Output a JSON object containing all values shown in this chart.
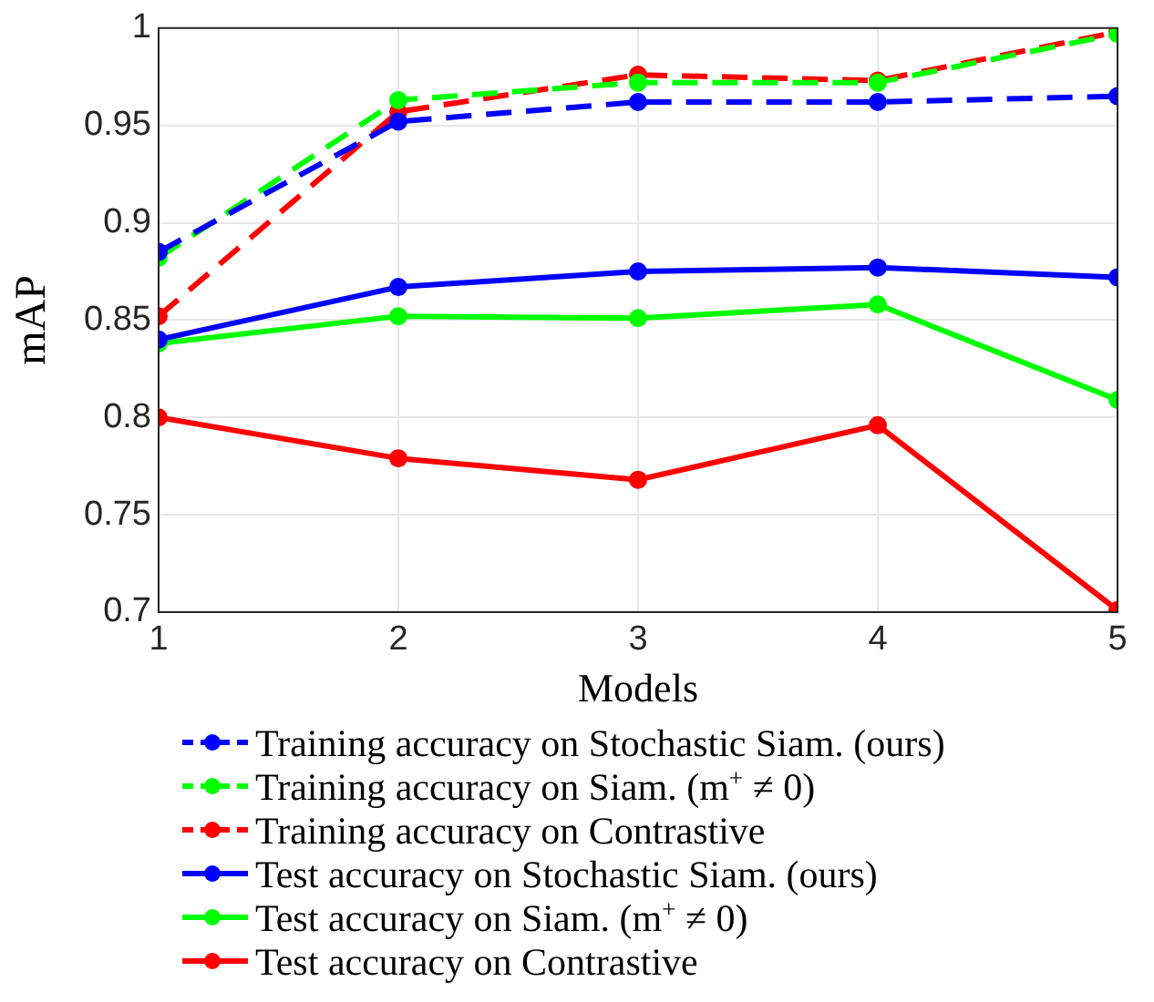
{
  "chart_data": {
    "type": "line",
    "xlabel": "Models",
    "ylabel": "mAP",
    "x": [
      1,
      2,
      3,
      4,
      5
    ],
    "xlim": [
      1,
      5
    ],
    "xticks": [
      1,
      2,
      3,
      4,
      5
    ],
    "ylim": [
      0.7,
      1
    ],
    "yticks": [
      0.7,
      0.75,
      0.8,
      0.85,
      0.9,
      0.95,
      1
    ],
    "grid": true,
    "legend": "bottom",
    "marker": "circle",
    "series": [
      {
        "name": "Training accuracy on Stochastic Siam. (ours)",
        "color": "#0000ff",
        "line_style": "dashed",
        "values": [
          0.885,
          0.952,
          0.962,
          0.962,
          0.965
        ]
      },
      {
        "name": "Training accuracy on Siam. (m$^{+}$ ≠ 0)",
        "color": "#00ff00",
        "line_style": "dashed",
        "values": [
          0.882,
          0.963,
          0.972,
          0.972,
          0.997
        ]
      },
      {
        "name": "Training accuracy on Contrastive",
        "color": "#ff0000",
        "line_style": "dashed",
        "values": [
          0.852,
          0.957,
          0.976,
          0.973,
          0.998
        ]
      },
      {
        "name": "Test accuracy on Stochastic Siam. (ours)",
        "color": "#0000ff",
        "line_style": "solid",
        "values": [
          0.84,
          0.867,
          0.875,
          0.877,
          0.872
        ]
      },
      {
        "name": "Test accuracy on Siam. (m$^{+}$ ≠ 0)",
        "color": "#00ff00",
        "line_style": "solid",
        "values": [
          0.838,
          0.852,
          0.851,
          0.858,
          0.809
        ]
      },
      {
        "name": "Test accuracy on Contrastive",
        "color": "#ff0000",
        "line_style": "solid",
        "values": [
          0.8,
          0.779,
          0.768,
          0.796,
          0.701
        ]
      }
    ]
  }
}
